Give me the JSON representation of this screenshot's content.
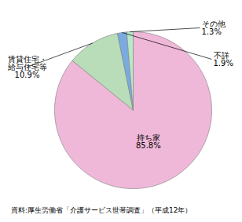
{
  "chart_data": {
    "type": "pie",
    "categories": [
      "持ち家",
      "賃貸住宅・\n給与住宅等",
      "不詳",
      "その他"
    ],
    "values": [
      85.8,
      10.9,
      1.9,
      1.3
    ],
    "value_labels": [
      "85.8%",
      "10.9%",
      "1.9%",
      "1.3%"
    ],
    "colors": [
      "#F0B8D8",
      "#B8DDB8",
      "#7AABE0",
      "#B8E8C8"
    ],
    "data_labels": true,
    "annotation": "資料:厚生労働省「介護サービス世帯調査」（平成12年）"
  }
}
